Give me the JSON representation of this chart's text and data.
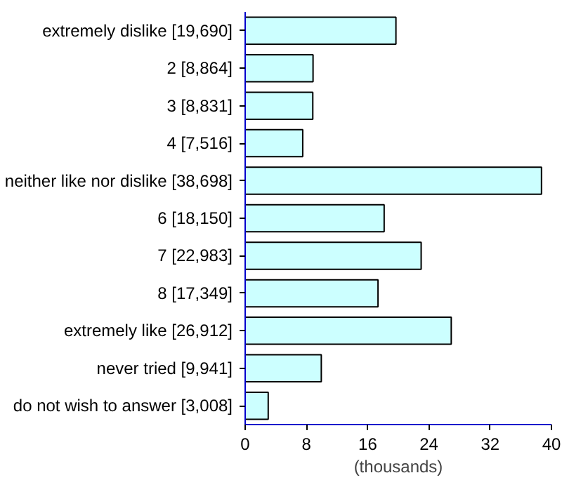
{
  "chart_data": {
    "type": "bar",
    "orientation": "horizontal",
    "xlabel": "(thousands)",
    "categories": [
      "extremely dislike [19,690]",
      "2 [8,864]",
      "3 [8,831]",
      "4 [7,516]",
      "neither like nor dislike [38,698]",
      "6 [18,150]",
      "7 [22,983]",
      "8 [17,349]",
      "extremely like [26,912]",
      "never tried [9,941]",
      "do not wish to answer [3,008]"
    ],
    "values": [
      19.69,
      8.864,
      8.831,
      7.516,
      38.698,
      18.15,
      22.983,
      17.349,
      26.912,
      9.941,
      3.008
    ],
    "color": "#ccffff",
    "xlim": [
      0,
      40
    ],
    "xticks": [
      0,
      8,
      16,
      24,
      32,
      40
    ],
    "grid": false
  }
}
